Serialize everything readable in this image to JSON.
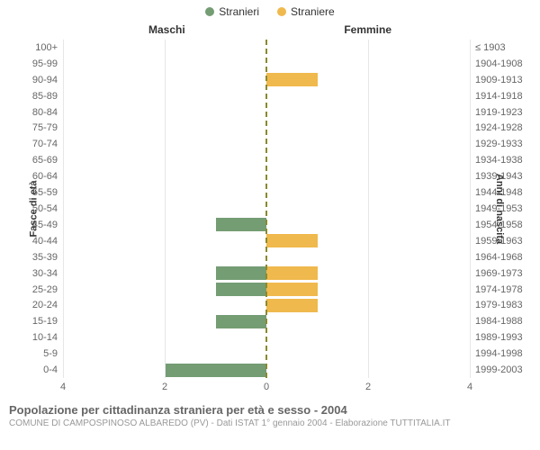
{
  "legend": {
    "male": {
      "label": "Stranieri",
      "color": "#749d74"
    },
    "female": {
      "label": "Straniere",
      "color": "#f0b94d"
    }
  },
  "headers": {
    "male": "Maschi",
    "female": "Femmine"
  },
  "axis_titles": {
    "left": "Fasce di età",
    "right": "Anni di nascita"
  },
  "chart": {
    "type": "population-pyramid",
    "xmax": 4,
    "xticks": [
      4,
      2,
      0,
      2,
      4
    ],
    "grid_color": "#e6e6e6",
    "center_line_color": "#8a8a2e",
    "background_color": "#ffffff",
    "bar_colors": {
      "male": "#749d74",
      "female": "#f0b94d"
    },
    "rows": [
      {
        "age": "100+",
        "birth": "≤ 1903",
        "male": 0,
        "female": 0
      },
      {
        "age": "95-99",
        "birth": "1904-1908",
        "male": 0,
        "female": 0
      },
      {
        "age": "90-94",
        "birth": "1909-1913",
        "male": 0,
        "female": 1
      },
      {
        "age": "85-89",
        "birth": "1914-1918",
        "male": 0,
        "female": 0
      },
      {
        "age": "80-84",
        "birth": "1919-1923",
        "male": 0,
        "female": 0
      },
      {
        "age": "75-79",
        "birth": "1924-1928",
        "male": 0,
        "female": 0
      },
      {
        "age": "70-74",
        "birth": "1929-1933",
        "male": 0,
        "female": 0
      },
      {
        "age": "65-69",
        "birth": "1934-1938",
        "male": 0,
        "female": 0
      },
      {
        "age": "60-64",
        "birth": "1939-1943",
        "male": 0,
        "female": 0
      },
      {
        "age": "55-59",
        "birth": "1944-1948",
        "male": 0,
        "female": 0
      },
      {
        "age": "50-54",
        "birth": "1949-1953",
        "male": 0,
        "female": 0
      },
      {
        "age": "45-49",
        "birth": "1954-1958",
        "male": 1,
        "female": 0
      },
      {
        "age": "40-44",
        "birth": "1959-1963",
        "male": 0,
        "female": 1
      },
      {
        "age": "35-39",
        "birth": "1964-1968",
        "male": 0,
        "female": 0
      },
      {
        "age": "30-34",
        "birth": "1969-1973",
        "male": 1,
        "female": 1
      },
      {
        "age": "25-29",
        "birth": "1974-1978",
        "male": 1,
        "female": 1
      },
      {
        "age": "20-24",
        "birth": "1979-1983",
        "male": 0,
        "female": 1
      },
      {
        "age": "15-19",
        "birth": "1984-1988",
        "male": 1,
        "female": 0
      },
      {
        "age": "10-14",
        "birth": "1989-1993",
        "male": 0,
        "female": 0
      },
      {
        "age": "5-9",
        "birth": "1994-1998",
        "male": 0,
        "female": 0
      },
      {
        "age": "0-4",
        "birth": "1999-2003",
        "male": 2,
        "female": 0
      }
    ]
  },
  "caption": {
    "title": "Popolazione per cittadinanza straniera per età e sesso - 2004",
    "subtitle": "COMUNE DI CAMPOSPINOSO ALBAREDO (PV) - Dati ISTAT 1° gennaio 2004 - Elaborazione TUTTITALIA.IT"
  }
}
